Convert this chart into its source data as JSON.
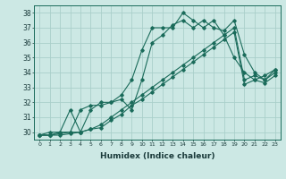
{
  "xlabel": "Humidex (Indice chaleur)",
  "ylabel": "",
  "background_color": "#cce8e4",
  "grid_color": "#aacfca",
  "line_color": "#1a6b5a",
  "xlim": [
    -0.5,
    23.5
  ],
  "ylim": [
    29.5,
    38.5
  ],
  "xticks": [
    0,
    1,
    2,
    3,
    4,
    5,
    6,
    7,
    8,
    9,
    10,
    11,
    12,
    13,
    14,
    15,
    16,
    17,
    18,
    19,
    20,
    21,
    22,
    23
  ],
  "yticks": [
    30,
    31,
    32,
    33,
    34,
    35,
    36,
    37,
    38
  ],
  "series": [
    [
      29.8,
      30.0,
      30.0,
      31.5,
      30.0,
      31.5,
      32.0,
      32.0,
      32.5,
      33.5,
      35.5,
      37.0,
      37.0,
      37.0,
      38.0,
      37.5,
      37.0,
      37.5,
      36.5,
      35.0,
      34.0,
      33.5,
      33.8,
      34.2
    ],
    [
      29.8,
      29.8,
      30.0,
      30.0,
      31.5,
      31.8,
      31.8,
      32.0,
      32.2,
      31.5,
      33.5,
      36.0,
      36.5,
      37.2,
      37.5,
      37.0,
      37.5,
      37.0,
      36.8,
      37.5,
      35.2,
      34.0,
      33.5,
      34.2
    ],
    [
      29.8,
      29.8,
      29.9,
      30.0,
      30.0,
      30.2,
      30.5,
      31.0,
      31.5,
      32.0,
      32.5,
      33.0,
      33.5,
      34.0,
      34.5,
      35.0,
      35.5,
      36.0,
      36.5,
      37.0,
      33.5,
      33.8,
      33.5,
      34.0
    ],
    [
      29.8,
      29.8,
      29.8,
      29.9,
      30.0,
      30.2,
      30.3,
      30.8,
      31.2,
      31.8,
      32.2,
      32.7,
      33.2,
      33.7,
      34.2,
      34.7,
      35.2,
      35.7,
      36.2,
      36.7,
      33.2,
      33.5,
      33.3,
      33.8
    ]
  ]
}
